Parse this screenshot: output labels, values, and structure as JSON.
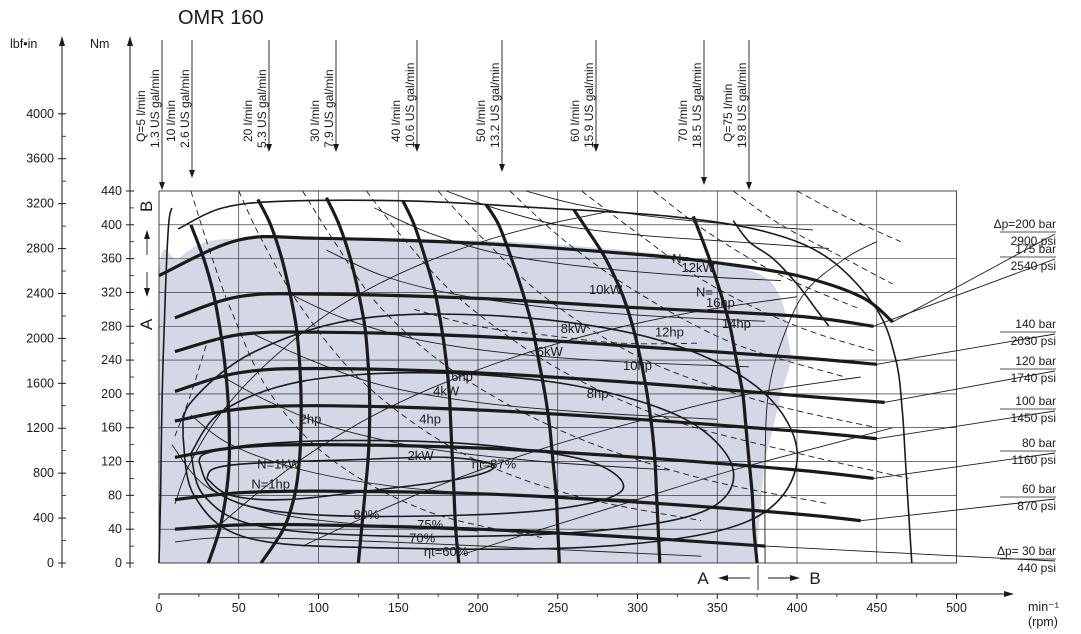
{
  "chart_data": {
    "type": "line",
    "title": "OMR 160",
    "x_axis": {
      "ticks": [
        0,
        50,
        100,
        150,
        200,
        250,
        300,
        350,
        400,
        450,
        500
      ],
      "unit": "min⁻¹",
      "unit_alt": "(rpm)",
      "range": [
        0,
        500
      ]
    },
    "y_axis_nm": {
      "label": "Nm",
      "ticks": [
        0,
        40,
        80,
        120,
        160,
        200,
        240,
        280,
        320,
        360,
        400,
        440
      ],
      "range": [
        0,
        440
      ]
    },
    "y_axis_lbf": {
      "label": "lbf•in",
      "ticks": [
        0,
        400,
        800,
        1200,
        1600,
        2000,
        2400,
        2800,
        3200,
        3600,
        4000
      ]
    },
    "grid": true,
    "flow_lines": [
      {
        "label_metric": "Q=5 l/min",
        "label_us": "1.3 US gal/min",
        "torque_rpm": [
          [
            8,
            420
          ],
          [
            6,
            400
          ],
          [
            4,
            320
          ],
          [
            2,
            200
          ],
          [
            1,
            80
          ],
          [
            0,
            0
          ]
        ]
      },
      {
        "label_metric": "10 l/min",
        "label_us": "2.6 US gal/min",
        "torque_rpm": [
          [
            20,
            400
          ],
          [
            28,
            360
          ],
          [
            34,
            320
          ],
          [
            38,
            280
          ],
          [
            41,
            240
          ],
          [
            43,
            200
          ],
          [
            44,
            160
          ],
          [
            44,
            120
          ],
          [
            42,
            80
          ],
          [
            38,
            40
          ],
          [
            31,
            0
          ]
        ]
      },
      {
        "label_metric": "20 l/min",
        "label_us": "5.3 US gal/min",
        "torque_rpm": [
          [
            62,
            430
          ],
          [
            70,
            400
          ],
          [
            77,
            360
          ],
          [
            82,
            320
          ],
          [
            86,
            280
          ],
          [
            88,
            240
          ],
          [
            89,
            200
          ],
          [
            89,
            160
          ],
          [
            88,
            120
          ],
          [
            85,
            80
          ],
          [
            78,
            40
          ],
          [
            64,
            0
          ]
        ]
      },
      {
        "label_metric": "30 l/min",
        "label_us": "7.9 US gal/min",
        "torque_rpm": [
          [
            105,
            432
          ],
          [
            113,
            400
          ],
          [
            120,
            360
          ],
          [
            125,
            320
          ],
          [
            129,
            280
          ],
          [
            131,
            240
          ],
          [
            132,
            200
          ],
          [
            132,
            160
          ],
          [
            131,
            120
          ],
          [
            129,
            80
          ],
          [
            127,
            40
          ],
          [
            125,
            0
          ]
        ]
      },
      {
        "label_metric": "40 l/min",
        "label_us": "10.6 US gal/min",
        "torque_rpm": [
          [
            153,
            428
          ],
          [
            160,
            400
          ],
          [
            167,
            360
          ],
          [
            173,
            320
          ],
          [
            177,
            280
          ],
          [
            180,
            240
          ],
          [
            182,
            200
          ],
          [
            183,
            160
          ],
          [
            184,
            120
          ],
          [
            185,
            80
          ],
          [
            186,
            40
          ],
          [
            188,
            0
          ]
        ]
      },
      {
        "label_metric": "50 l/min",
        "label_us": "13.2 US gal/min",
        "torque_rpm": [
          [
            205,
            424
          ],
          [
            213,
            400
          ],
          [
            221,
            360
          ],
          [
            228,
            320
          ],
          [
            234,
            280
          ],
          [
            238,
            240
          ],
          [
            242,
            200
          ],
          [
            245,
            160
          ],
          [
            247,
            120
          ],
          [
            249,
            80
          ],
          [
            250,
            40
          ],
          [
            251,
            0
          ]
        ]
      },
      {
        "label_metric": "60 l/min",
        "label_us": "15.9 US gal/min",
        "torque_rpm": [
          [
            260,
            418
          ],
          [
            270,
            390
          ],
          [
            280,
            360
          ],
          [
            290,
            320
          ],
          [
            297,
            280
          ],
          [
            302,
            240
          ],
          [
            306,
            200
          ],
          [
            309,
            160
          ],
          [
            311,
            120
          ],
          [
            312,
            80
          ],
          [
            313,
            40
          ],
          [
            314,
            0
          ]
        ]
      },
      {
        "label_metric": "70 l/min",
        "label_us": "18.5 US gal/min",
        "torque_rpm": [
          [
            335,
            410
          ],
          [
            345,
            360
          ],
          [
            352,
            320
          ],
          [
            358,
            280
          ],
          [
            362,
            240
          ],
          [
            366,
            200
          ],
          [
            368,
            160
          ],
          [
            370,
            120
          ],
          [
            372,
            80
          ],
          [
            373,
            40
          ],
          [
            375,
            0
          ]
        ]
      },
      {
        "label_metric": "Q=75 l/min",
        "label_us": "19.8 US gal/min",
        "torque_rpm": [
          [
            360,
            405
          ],
          [
            370,
            380
          ],
          [
            385,
            360
          ],
          [
            400,
            330
          ],
          [
            412,
            300
          ],
          [
            420,
            280
          ]
        ]
      }
    ],
    "pressure_lines": [
      {
        "label_bar": "Δp=200 bar",
        "label_psi": "2900 psi",
        "torque_rpm": [
          [
            0,
            340
          ],
          [
            50,
            382
          ],
          [
            100,
            384
          ],
          [
            200,
            378
          ],
          [
            300,
            365
          ],
          [
            350,
            355
          ],
          [
            400,
            340
          ],
          [
            440,
            315
          ],
          [
            460,
            285
          ]
        ]
      },
      {
        "label_bar": "175 bar",
        "label_psi": "2540 psi",
        "torque_rpm": [
          [
            10,
            290
          ],
          [
            50,
            315
          ],
          [
            100,
            318
          ],
          [
            200,
            313
          ],
          [
            300,
            302
          ],
          [
            400,
            292
          ],
          [
            448,
            280
          ]
        ]
      },
      {
        "label_bar": "140 bar",
        "label_psi": "2030 psi",
        "torque_rpm": [
          [
            10,
            250
          ],
          [
            50,
            270
          ],
          [
            100,
            273
          ],
          [
            200,
            268
          ],
          [
            300,
            256
          ],
          [
            400,
            243
          ],
          [
            450,
            235
          ]
        ]
      },
      {
        "label_bar": "120 bar",
        "label_psi": "1740 psi",
        "torque_rpm": [
          [
            10,
            203
          ],
          [
            50,
            225
          ],
          [
            100,
            230
          ],
          [
            200,
            225
          ],
          [
            300,
            213
          ],
          [
            400,
            198
          ],
          [
            455,
            190
          ]
        ]
      },
      {
        "label_bar": "100 bar",
        "label_psi": "1450 psi",
        "torque_rpm": [
          [
            10,
            168
          ],
          [
            50,
            182
          ],
          [
            100,
            186
          ],
          [
            200,
            181
          ],
          [
            300,
            170
          ],
          [
            400,
            156
          ],
          [
            450,
            147
          ]
        ]
      },
      {
        "label_bar": "80 bar",
        "label_psi": "1160 psi",
        "torque_rpm": [
          [
            10,
            125
          ],
          [
            50,
            137
          ],
          [
            100,
            140
          ],
          [
            200,
            136
          ],
          [
            300,
            125
          ],
          [
            400,
            110
          ],
          [
            448,
            100
          ]
        ]
      },
      {
        "label_bar": "60 bar",
        "label_psi": "870 psi",
        "torque_rpm": [
          [
            10,
            75
          ],
          [
            50,
            83
          ],
          [
            100,
            85
          ],
          [
            200,
            82
          ],
          [
            300,
            72
          ],
          [
            400,
            58
          ],
          [
            440,
            50
          ]
        ]
      },
      {
        "label_bar": "Δp= 30 bar",
        "label_psi": "440 psi",
        "torque_rpm": [
          [
            10,
            40
          ],
          [
            50,
            45
          ],
          [
            100,
            45
          ],
          [
            200,
            40
          ],
          [
            300,
            30
          ],
          [
            380,
            20
          ]
        ]
      }
    ],
    "power_lines": [
      "N=1kW",
      "N=1hp",
      "2hp",
      "2kW",
      "4hp",
      "4kW",
      "6hp",
      "6kW",
      "8hp",
      "8kW",
      "10hp",
      "10kW",
      "12hp",
      "N=",
      "12kW",
      "N=",
      "16hp",
      "14hp"
    ],
    "efficiency_lines": [
      "80%",
      "75%",
      "70%",
      "ηt=60%",
      "ηt=87%"
    ],
    "direction_labels": {
      "a": "A",
      "b": "B"
    }
  }
}
